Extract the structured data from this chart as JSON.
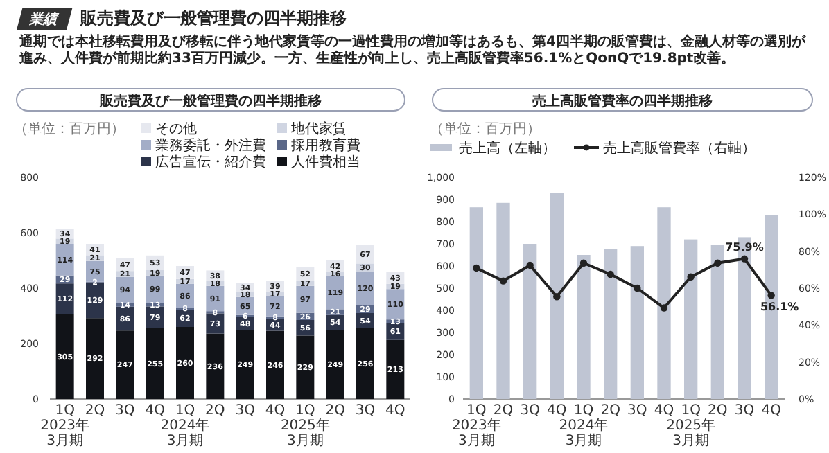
{
  "chart_data": [
    {
      "type": "other",
      "title": "販売費及び一般管理費の四半期推移",
      "subtitle": "通期では本社移転費用及び移転に伴う地代家賃等の一過性費用の増加等はあるも、第4四半期の販管費は、金融人材等の選別が進み、人件費が前期比約33百万円減少。一方、生産性が向上し、売上高販管費率56.1%とQonQで19.8pt改善。",
      "annotations": [
        "業績"
      ]
    },
    {
      "type": "bar",
      "title": "販売費及び一般管理費の四半期推移",
      "annotations": [
        "（単位：百万円）"
      ],
      "stacked": true,
      "data_labels": true,
      "legend": "top",
      "categories": [
        "1Q\n2023年\n3月期",
        "2Q",
        "3Q",
        "4Q",
        "1Q\n2024年\n3月期",
        "2Q",
        "3Q",
        "4Q",
        "1Q\n2025年\n3月期",
        "2Q",
        "3Q",
        "4Q"
      ],
      "ylim": [
        0,
        800
      ],
      "yticks": [
        0,
        200,
        400,
        600,
        800
      ],
      "series": [
        {
          "name": "人件費相当",
          "color": "#111318",
          "values": [
            305,
            292,
            247,
            255,
            260,
            236,
            249,
            246,
            229,
            249,
            256,
            213
          ]
        },
        {
          "name": "広告宣伝・紹介費",
          "color": "#2c344a",
          "values": [
            112,
            129,
            86,
            79,
            62,
            73,
            48,
            44,
            56,
            54,
            54,
            61
          ]
        },
        {
          "name": "採用教育費",
          "color": "#5a6788",
          "values": [
            29,
            2,
            14,
            13,
            8,
            8,
            6,
            8,
            26,
            21,
            29,
            13
          ]
        },
        {
          "name": "業務委託・外注費",
          "color": "#a3adc7",
          "values": [
            114,
            75,
            94,
            99,
            86,
            91,
            65,
            72,
            97,
            119,
            120,
            110
          ]
        },
        {
          "name": "地代家賃",
          "color": "#d0d5e2",
          "values": [
            19,
            21,
            21,
            19,
            17,
            18,
            18,
            17,
            17,
            16,
            30,
            19
          ]
        },
        {
          "name": "その他",
          "color": "#e6e8ef",
          "values": [
            34,
            41,
            47,
            53,
            47,
            38,
            34,
            39,
            52,
            42,
            67,
            43
          ]
        }
      ]
    },
    {
      "type": "bar",
      "title": "売上高販管費率の四半期推移",
      "annotations": [
        "（単位：百万円）"
      ],
      "legend": "top left",
      "categories": [
        "1Q\n2023年\n3月期",
        "2Q",
        "3Q",
        "4Q",
        "1Q\n2024年\n3月期",
        "2Q",
        "3Q",
        "4Q",
        "1Q\n2025年\n3月期",
        "2Q",
        "3Q",
        "4Q"
      ],
      "ylim": [
        0,
        1000
      ],
      "yticks": [
        0,
        100,
        200,
        300,
        400,
        500,
        600,
        700,
        800,
        900,
        {
          "value": 1000,
          "label": "1,000"
        }
      ],
      "y2lim": [
        0,
        120
      ],
      "y2ticks": [
        {
          "value": 0,
          "label": "0%"
        },
        {
          "value": 20,
          "label": "20%"
        },
        {
          "value": 40,
          "label": "40%"
        },
        {
          "value": 60,
          "label": "60%"
        },
        {
          "value": 80,
          "label": "80%"
        },
        {
          "value": 100,
          "label": "100%"
        },
        {
          "value": 120,
          "label": "120%"
        }
      ],
      "series": [
        {
          "type": "bar",
          "name": "売上高（左軸）",
          "color": "#bfc5d3",
          "values": [
            865,
            885,
            700,
            930,
            650,
            675,
            690,
            865,
            720,
            695,
            730,
            830
          ]
        },
        {
          "type": "line",
          "axis": "y2",
          "name": "売上高販管費率（右軸）",
          "color": "#222222",
          "marker": "circle",
          "line_style": "solid",
          "values": [
            70.9,
            63.9,
            72.4,
            55.4,
            73.6,
            67.5,
            60.0,
            49.3,
            66.1,
            73.6,
            75.9,
            56.1
          ],
          "value_labels": [
            null,
            null,
            null,
            null,
            null,
            null,
            null,
            null,
            null,
            null,
            "75.9%",
            "56.1%"
          ]
        }
      ]
    }
  ]
}
